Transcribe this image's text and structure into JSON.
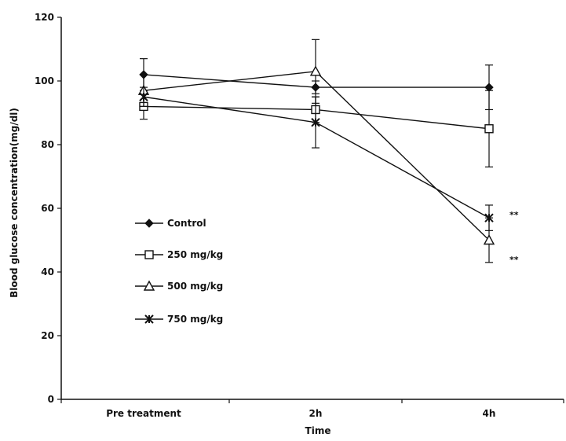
{
  "chart_data": {
    "type": "line",
    "title": "",
    "xlabel": "Time",
    "ylabel": "Blood glucose concentration(mg/dl)",
    "categories": [
      "Pre treatment",
      "2h",
      "4h"
    ],
    "ylim": [
      0,
      120
    ],
    "yticks": [
      0,
      20,
      40,
      60,
      80,
      100,
      120
    ],
    "grid": false,
    "legend_position": "left-center",
    "series": [
      {
        "name": "Control",
        "marker": "diamond",
        "values": [
          102,
          98,
          98
        ],
        "errors": [
          5,
          2,
          7
        ]
      },
      {
        "name": "250 mg/kg",
        "marker": "square",
        "values": [
          92,
          91,
          85
        ],
        "errors": [
          4,
          4,
          12
        ]
      },
      {
        "name": "500 mg/kg",
        "marker": "triangle",
        "values": [
          97,
          103,
          50
        ],
        "errors": [
          5,
          10,
          7
        ]
      },
      {
        "name": "750 mg/kg",
        "marker": "star",
        "values": [
          95,
          87,
          57
        ],
        "errors": [
          3,
          8,
          4
        ]
      }
    ],
    "annotations": [
      {
        "text": "**",
        "category": "4h",
        "y": 58
      },
      {
        "text": "**",
        "category": "4h",
        "y": 44
      }
    ]
  }
}
